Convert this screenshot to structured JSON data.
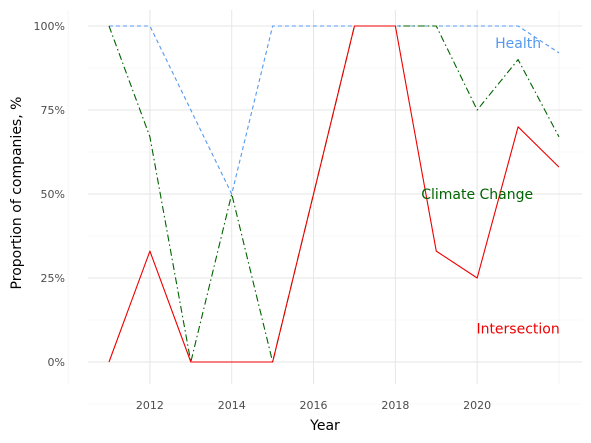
{
  "chart_data": {
    "type": "line",
    "xlabel": "Year",
    "ylabel": "Proportion of companies, %",
    "x": [
      2011,
      2012,
      2013,
      2014,
      2015,
      2016,
      2017,
      2018,
      2019,
      2020,
      2021,
      2022
    ],
    "x_ticks": [
      2012,
      2014,
      2016,
      2018,
      2020
    ],
    "y_ticks": [
      0,
      25,
      50,
      75,
      100
    ],
    "y_tick_labels": [
      "0%",
      "25%",
      "50%",
      "75%",
      "100%"
    ],
    "xlim": [
      2011,
      2022
    ],
    "ylim": [
      0,
      100
    ],
    "grid": true,
    "legend": "none",
    "series": [
      {
        "name": "Health",
        "color": "#5599ee",
        "dash": "dashed",
        "values": [
          100,
          100,
          75,
          50,
          100,
          100,
          100,
          100,
          100,
          100,
          100,
          92
        ]
      },
      {
        "name": "Climate Change",
        "color": "#006400",
        "dash": "dashdot",
        "values": [
          100,
          67,
          0,
          50,
          0,
          50,
          100,
          100,
          100,
          75,
          90,
          67
        ]
      },
      {
        "name": "Intersection",
        "color": "#ee0000",
        "dash": "solid",
        "values": [
          0,
          33,
          0,
          0,
          0,
          50,
          100,
          100,
          33,
          25,
          70,
          58
        ]
      }
    ],
    "annotations": [
      {
        "text": "Health",
        "x": 2021.0,
        "y": 95,
        "color": "#5599ee"
      },
      {
        "text": "Climate Change",
        "x": 2020.0,
        "y": 50,
        "color": "#006400"
      },
      {
        "text": "Intersection",
        "x": 2021.0,
        "y": 10,
        "color": "#ee0000"
      }
    ]
  }
}
